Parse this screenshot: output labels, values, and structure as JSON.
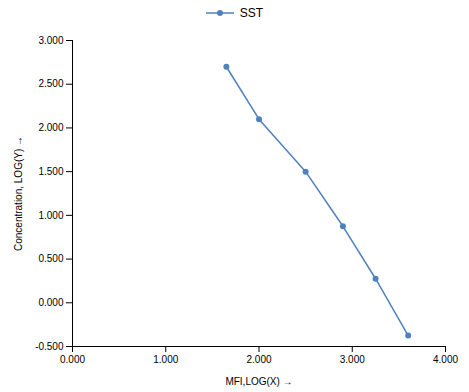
{
  "chart_data": {
    "type": "line",
    "x": [
      1.65,
      2.0,
      2.5,
      2.9,
      3.25,
      3.6
    ],
    "series": [
      {
        "name": "SST",
        "color": "#4f81bd",
        "marker": "circle",
        "values": [
          2.7,
          2.1,
          1.5,
          0.875,
          0.275,
          -0.375
        ]
      }
    ],
    "xlabel": "MFI,LOG(X)",
    "ylabel": "Concentration, LOG(Y)",
    "xlim": [
      0.0,
      4.0
    ],
    "ylim": [
      -0.5,
      3.0
    ],
    "xticks": [
      {
        "value": 0.0,
        "label": "0.000"
      },
      {
        "value": 1.0,
        "label": "1.000"
      },
      {
        "value": 2.0,
        "label": "2.000"
      },
      {
        "value": 3.0,
        "label": "3.000"
      },
      {
        "value": 4.0,
        "label": "4.000"
      }
    ],
    "yticks": [
      {
        "value": -0.5,
        "label": "-0.500"
      },
      {
        "value": 0.0,
        "label": "0.000"
      },
      {
        "value": 0.5,
        "label": "0.500"
      },
      {
        "value": 1.0,
        "label": "1.000"
      },
      {
        "value": 1.5,
        "label": "1.500"
      },
      {
        "value": 2.0,
        "label": "2.000"
      },
      {
        "value": 2.5,
        "label": "2.500"
      },
      {
        "value": 3.0,
        "label": "3.000"
      }
    ],
    "grid": false,
    "legend": "top"
  }
}
